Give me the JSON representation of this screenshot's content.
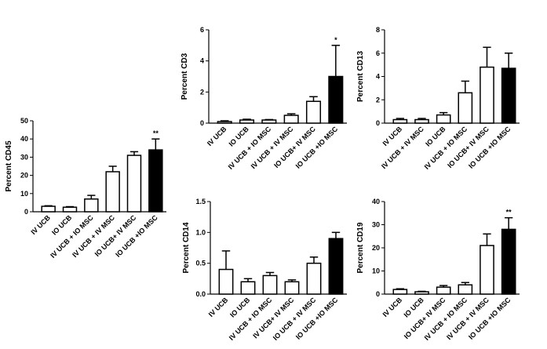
{
  "chart_data": [
    {
      "type": "bar",
      "ylabel": "Percent CD45",
      "categories": [
        "IV UCB",
        "IO UCB",
        "IV UCB + IO MSC",
        "IV UCB + IV MSC",
        "IO UCB+ IV MSC",
        "IO UCB +IO MSC"
      ],
      "values": [
        3,
        2.5,
        7,
        22,
        31,
        34
      ],
      "errors": [
        0.3,
        0.3,
        2,
        3,
        2,
        6
      ],
      "colors": [
        "#ffffff",
        "#ffffff",
        "#ffffff",
        "#ffffff",
        "#ffffff",
        "#000000"
      ],
      "annotations": [
        null,
        null,
        null,
        null,
        null,
        "**"
      ],
      "ylim": [
        0,
        50
      ],
      "yticks": [
        0,
        10,
        20,
        30,
        40,
        50
      ]
    },
    {
      "type": "bar",
      "ylabel": "Percent CD3",
      "categories": [
        "IV UCB",
        "IO UCB",
        "IV UCB + IO MSC",
        "IV UCB + IV MSC",
        "IO UCB+ IV MSC",
        "IO UCB +IO MSC"
      ],
      "values": [
        0.1,
        0.2,
        0.2,
        0.5,
        1.4,
        3.0
      ],
      "errors": [
        0.05,
        0.05,
        0.03,
        0.1,
        0.3,
        2.0
      ],
      "colors": [
        "#ffffff",
        "#ffffff",
        "#ffffff",
        "#ffffff",
        "#ffffff",
        "#000000"
      ],
      "annotations": [
        null,
        null,
        null,
        null,
        null,
        "*"
      ],
      "ylim": [
        0,
        6
      ],
      "yticks": [
        0,
        2,
        4,
        6
      ]
    },
    {
      "type": "bar",
      "ylabel": "Percent CD13",
      "categories": [
        "IV UCB",
        "IV UCB + IV MSC",
        "IO UCB",
        "IV UCB + IO MSC",
        "IO UCB+ IV MSC",
        "IO UCB +IO MSC"
      ],
      "values": [
        0.3,
        0.3,
        0.7,
        2.6,
        4.8,
        4.7
      ],
      "errors": [
        0.1,
        0.1,
        0.2,
        1.0,
        1.7,
        1.3
      ],
      "colors": [
        "#ffffff",
        "#ffffff",
        "#ffffff",
        "#ffffff",
        "#ffffff",
        "#000000"
      ],
      "ylim": [
        0,
        8
      ],
      "yticks": [
        0,
        2,
        4,
        6,
        8
      ]
    },
    {
      "type": "bar",
      "ylabel": "Percent CD14",
      "categories": [
        "IV UCB",
        "IO UCB",
        "IV UCB + IO MSC",
        "IV UCB+ IV MSC",
        "IO UCB + IV MSC",
        "IO UCB +IO MSC"
      ],
      "values": [
        0.4,
        0.2,
        0.3,
        0.2,
        0.5,
        0.9
      ],
      "errors": [
        0.3,
        0.05,
        0.05,
        0.03,
        0.1,
        0.1
      ],
      "colors": [
        "#ffffff",
        "#ffffff",
        "#ffffff",
        "#ffffff",
        "#ffffff",
        "#000000"
      ],
      "ylim": [
        0,
        1.5
      ],
      "yticks": [
        {
          "value": 0,
          "label": "0.0"
        },
        0.5,
        {
          "value": 1,
          "label": "1.0"
        },
        1.5
      ]
    },
    {
      "type": "bar",
      "ylabel": "Percent CD19",
      "categories": [
        "IV UCB",
        "IO UCB",
        "IO UCB+ IV MSC",
        "IV UCB + IO MSC",
        "IV UCB + IV MSC",
        "IO UCB +IO MSC"
      ],
      "values": [
        2,
        1,
        3,
        4,
        21,
        28
      ],
      "errors": [
        0.3,
        0.2,
        0.7,
        1,
        5,
        5
      ],
      "colors": [
        "#ffffff",
        "#ffffff",
        "#ffffff",
        "#ffffff",
        "#ffffff",
        "#000000"
      ],
      "annotations": [
        null,
        null,
        null,
        null,
        null,
        "**"
      ],
      "ylim": [
        0,
        40
      ],
      "yticks": [
        0,
        10,
        20,
        30,
        40
      ]
    }
  ]
}
